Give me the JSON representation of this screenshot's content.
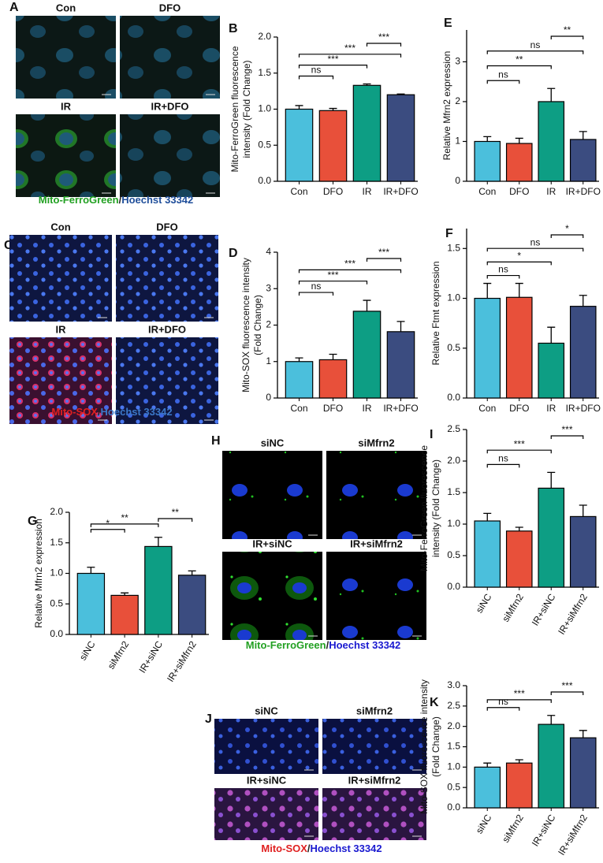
{
  "chart_data": [
    {
      "panel": "B",
      "type": "bar",
      "ylabel": [
        "Mito-FerroGreen fluorescence",
        "intensity (Fold Change)"
      ],
      "categories": [
        "Con",
        "DFO",
        "IR",
        "IR+DFO"
      ],
      "values": [
        1.0,
        0.98,
        1.33,
        1.2
      ],
      "errors": [
        0.05,
        0.03,
        0.02,
        0.01
      ],
      "colors": [
        "#4bbfdc",
        "#e8503a",
        "#0d9e84",
        "#3b4c80"
      ],
      "ylim": [
        0,
        2.0
      ],
      "yticks": [
        {
          "value": 0,
          "label": "0.0"
        },
        0.5,
        {
          "value": 1,
          "label": "1.0"
        },
        1.5,
        {
          "value": 2,
          "label": "2.0"
        }
      ],
      "rotate_labels": false,
      "comparisons": [
        {
          "groups": [
            "Con",
            "DFO"
          ],
          "label": "ns"
        },
        {
          "groups": [
            "Con",
            "IR"
          ],
          "label": "***"
        },
        {
          "groups": [
            "Con",
            "IR+DFO"
          ],
          "label": "***"
        },
        {
          "groups": [
            "IR",
            "IR+DFO"
          ],
          "label": "***"
        }
      ]
    },
    {
      "panel": "E",
      "type": "bar",
      "ylabel": [
        "Relative Mfrn2 expression"
      ],
      "categories": [
        "Con",
        "DFO",
        "IR",
        "IR+DFO"
      ],
      "values": [
        1.0,
        0.95,
        2.0,
        1.05
      ],
      "errors": [
        0.12,
        0.13,
        0.33,
        0.2
      ],
      "colors": [
        "#4bbfdc",
        "#e8503a",
        "#0d9e84",
        "#3b4c80"
      ],
      "ylim": [
        0,
        3.8
      ],
      "yticks": [
        0,
        1,
        2,
        3
      ],
      "rotate_labels": false,
      "comparisons": [
        {
          "groups": [
            "Con",
            "DFO"
          ],
          "label": "ns"
        },
        {
          "groups": [
            "Con",
            "IR"
          ],
          "label": "**"
        },
        {
          "groups": [
            "Con",
            "IR+DFO"
          ],
          "label": "ns"
        },
        {
          "groups": [
            "IR",
            "IR+DFO"
          ],
          "label": "**"
        }
      ]
    },
    {
      "panel": "D",
      "type": "bar",
      "ylabel": [
        "Mito-SOX fluorescence intensity",
        "(Fold Change)"
      ],
      "categories": [
        "Con",
        "DFO",
        "IR",
        "IR+DFO"
      ],
      "values": [
        1.0,
        1.05,
        2.38,
        1.82
      ],
      "errors": [
        0.1,
        0.15,
        0.3,
        0.28
      ],
      "colors": [
        "#4bbfdc",
        "#e8503a",
        "#0d9e84",
        "#3b4c80"
      ],
      "ylim": [
        0,
        4
      ],
      "yticks": [
        0,
        1,
        2,
        3,
        4
      ],
      "rotate_labels": false,
      "comparisons": [
        {
          "groups": [
            "Con",
            "DFO"
          ],
          "label": "ns"
        },
        {
          "groups": [
            "Con",
            "IR"
          ],
          "label": "***"
        },
        {
          "groups": [
            "Con",
            "IR+DFO"
          ],
          "label": "***"
        },
        {
          "groups": [
            "IR",
            "IR+DFO"
          ],
          "label": "***"
        }
      ]
    },
    {
      "panel": "F",
      "type": "bar",
      "ylabel": [
        "Relative Ftmt expression"
      ],
      "categories": [
        "Con",
        "DFO",
        "IR",
        "IR+DFO"
      ],
      "values": [
        1.0,
        1.01,
        0.55,
        0.92
      ],
      "errors": [
        0.15,
        0.14,
        0.16,
        0.11
      ],
      "colors": [
        "#4bbfdc",
        "#e8503a",
        "#0d9e84",
        "#3b4c80"
      ],
      "ylim": [
        0,
        1.7
      ],
      "yticks": [
        {
          "value": 0,
          "label": "0.0"
        },
        0.5,
        {
          "value": 1,
          "label": "1.0"
        },
        1.5
      ],
      "rotate_labels": false,
      "comparisons": [
        {
          "groups": [
            "Con",
            "DFO"
          ],
          "label": "ns"
        },
        {
          "groups": [
            "Con",
            "IR"
          ],
          "label": "*"
        },
        {
          "groups": [
            "Con",
            "IR+DFO"
          ],
          "label": "ns"
        },
        {
          "groups": [
            "IR",
            "IR+DFO"
          ],
          "label": "*"
        }
      ]
    },
    {
      "panel": "G",
      "type": "bar",
      "ylabel": [
        "Relative Mfrn2 expression"
      ],
      "categories": [
        "siNC",
        "siMfrn2",
        "IR+siNC",
        "IR+siMfrn2"
      ],
      "values": [
        1.0,
        0.64,
        1.44,
        0.97
      ],
      "errors": [
        0.1,
        0.04,
        0.15,
        0.07
      ],
      "colors": [
        "#4bbfdc",
        "#e8503a",
        "#0d9e84",
        "#3b4c80"
      ],
      "ylim": [
        0,
        2.0
      ],
      "yticks": [
        {
          "value": 0,
          "label": "0.0"
        },
        0.5,
        {
          "value": 1,
          "label": "1.0"
        },
        1.5,
        {
          "value": 2,
          "label": "2.0"
        }
      ],
      "rotate_labels": true,
      "comparisons": [
        {
          "groups": [
            "siNC",
            "siMfrn2"
          ],
          "label": "*"
        },
        {
          "groups": [
            "siNC",
            "IR+siNC"
          ],
          "label": "**"
        },
        {
          "groups": [
            "IR+siNC",
            "IR+siMfrn2"
          ],
          "label": "**"
        }
      ]
    },
    {
      "panel": "I",
      "type": "bar",
      "ylabel": [
        "Mito-FerroGreen fluorescence",
        "intensity (Fold Change)"
      ],
      "categories": [
        "siNC",
        "siMfrn2",
        "IR+siNC",
        "IR+siMfrn2"
      ],
      "values": [
        1.05,
        0.89,
        1.57,
        1.12
      ],
      "errors": [
        0.12,
        0.06,
        0.25,
        0.18
      ],
      "colors": [
        "#4bbfdc",
        "#e8503a",
        "#0d9e84",
        "#3b4c80"
      ],
      "ylim": [
        0,
        2.5
      ],
      "yticks": [
        {
          "value": 0,
          "label": "0.0"
        },
        0.5,
        {
          "value": 1,
          "label": "1.0"
        },
        1.5,
        {
          "value": 2,
          "label": "2.0"
        },
        2.5
      ],
      "rotate_labels": true,
      "comparisons": [
        {
          "groups": [
            "siNC",
            "siMfrn2"
          ],
          "label": "ns"
        },
        {
          "groups": [
            "siNC",
            "IR+siNC"
          ],
          "label": "***"
        },
        {
          "groups": [
            "IR+siNC",
            "IR+siMfrn2"
          ],
          "label": "***"
        }
      ]
    },
    {
      "panel": "K",
      "type": "bar",
      "ylabel": [
        "Mito-SOX fluorescence intensity",
        "(Fold Change)"
      ],
      "categories": [
        "siNC",
        "siMfrn2",
        "IR+siNC",
        "IR+siMfrn2"
      ],
      "values": [
        1.0,
        1.1,
        2.05,
        1.72
      ],
      "errors": [
        0.1,
        0.08,
        0.22,
        0.18
      ],
      "colors": [
        "#4bbfdc",
        "#e8503a",
        "#0d9e84",
        "#3b4c80"
      ],
      "ylim": [
        0,
        3.0
      ],
      "yticks": [
        {
          "value": 0,
          "label": "0.0"
        },
        0.5,
        {
          "value": 1,
          "label": "1.0"
        },
        1.5,
        {
          "value": 2,
          "label": "2.0"
        },
        2.5,
        {
          "value": 3,
          "label": "3.0"
        }
      ],
      "rotate_labels": true,
      "comparisons": [
        {
          "groups": [
            "siNC",
            "siMfrn2"
          ],
          "label": "ns"
        },
        {
          "groups": [
            "siNC",
            "IR+siNC"
          ],
          "label": "***"
        },
        {
          "groups": [
            "IR+siNC",
            "IR+siMfrn2"
          ],
          "label": "***"
        }
      ]
    }
  ],
  "image_panels": [
    {
      "panel": "A",
      "labels": [
        "Con",
        "DFO",
        "IR",
        "IR+DFO"
      ],
      "caption": [
        {
          "text": "Mito-FerroGreen",
          "color": "#22a022"
        },
        {
          "text": "/",
          "color": "#222222"
        },
        {
          "text": "Hoechst 33342",
          "color": "#1f4e9a"
        }
      ]
    },
    {
      "panel": "C",
      "labels": [
        "Con",
        "DFO",
        "IR",
        "IR+DFO"
      ],
      "caption": [
        {
          "text": "Mito-SOX",
          "color": "#e02020"
        },
        {
          "text": "/",
          "color": "#222222"
        },
        {
          "text": "Hoechst 33342",
          "color": "#3c78c8"
        }
      ]
    },
    {
      "panel": "H",
      "labels": [
        "siNC",
        "siMfrn2",
        "IR+siNC",
        "IR+siMfrn2"
      ],
      "caption": [
        {
          "text": "Mito-FerroGreen",
          "color": "#22a022"
        },
        {
          "text": "/",
          "color": "#222222"
        },
        {
          "text": "Hoechst 33342",
          "color": "#1a1ad0"
        }
      ]
    },
    {
      "panel": "J",
      "labels": [
        "siNC",
        "siMfrn2",
        "IR+siNC",
        "IR+siMfrn2"
      ],
      "caption": [
        {
          "text": "Mito-SOX",
          "color": "#e02020"
        },
        {
          "text": "/",
          "color": "#222222"
        },
        {
          "text": "Hoechst 33342",
          "color": "#1a1ad0"
        }
      ]
    }
  ]
}
